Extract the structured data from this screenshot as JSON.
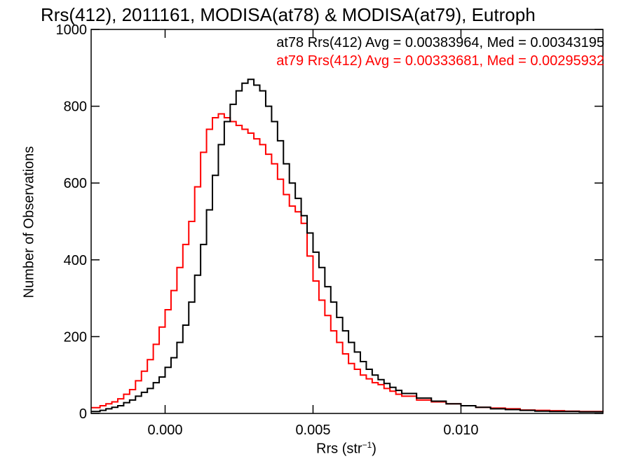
{
  "chart_data": {
    "type": "line",
    "title": "Rrs(412), 2011161, MODISA(at78) & MODISA(at79), Eutroph",
    "xlabel_base": "Rrs (str",
    "xlabel_sup": "−1",
    "xlabel_close": ")",
    "ylabel": "Number of Observations",
    "xlim": [
      -0.0025,
      0.0148
    ],
    "ylim": [
      0,
      1000
    ],
    "x_ticks": [
      {
        "value": 0.0,
        "label": "0.000"
      },
      {
        "value": 0.005,
        "label": "0.005"
      },
      {
        "value": 0.01,
        "label": "0.010"
      }
    ],
    "y_ticks": [
      {
        "value": 0,
        "label": "0"
      },
      {
        "value": 200,
        "label": "200"
      },
      {
        "value": 400,
        "label": "400"
      },
      {
        "value": 600,
        "label": "600"
      },
      {
        "value": 800,
        "label": "800"
      },
      {
        "value": 1000,
        "label": "1000"
      }
    ],
    "x": [
      -0.0025,
      -0.0022,
      -0.002,
      -0.0018,
      -0.0016,
      -0.0014,
      -0.0012,
      -0.001,
      -0.0008,
      -0.0006,
      -0.0004,
      -0.0002,
      0.0,
      0.0002,
      0.0004,
      0.0006,
      0.0008,
      0.001,
      0.0012,
      0.0014,
      0.0016,
      0.0018,
      0.002,
      0.0022,
      0.0024,
      0.0026,
      0.0028,
      0.003,
      0.0032,
      0.0034,
      0.0036,
      0.0038,
      0.004,
      0.0042,
      0.0044,
      0.0046,
      0.0048,
      0.005,
      0.0052,
      0.0054,
      0.0056,
      0.0058,
      0.006,
      0.0062,
      0.0064,
      0.0066,
      0.0068,
      0.007,
      0.0072,
      0.0074,
      0.0076,
      0.0078,
      0.008,
      0.0085,
      0.009,
      0.0095,
      0.01,
      0.0105,
      0.011,
      0.0115,
      0.012,
      0.0125,
      0.013,
      0.0135,
      0.014,
      0.0145,
      0.0148
    ],
    "series": [
      {
        "name": "at78",
        "color": "#000000",
        "values": [
          5,
          8,
          12,
          16,
          20,
          28,
          35,
          45,
          55,
          65,
          80,
          95,
          120,
          145,
          185,
          230,
          290,
          360,
          440,
          530,
          620,
          700,
          760,
          805,
          840,
          860,
          870,
          855,
          840,
          800,
          760,
          710,
          650,
          600,
          560,
          515,
          470,
          420,
          380,
          330,
          290,
          250,
          215,
          185,
          160,
          135,
          115,
          100,
          88,
          78,
          68,
          60,
          52,
          40,
          32,
          25,
          20,
          16,
          12,
          10,
          8,
          6,
          5,
          5,
          4,
          4,
          4
        ]
      },
      {
        "name": "at79",
        "color": "#ff0000",
        "values": [
          15,
          20,
          25,
          30,
          38,
          50,
          62,
          85,
          110,
          140,
          180,
          225,
          270,
          320,
          380,
          440,
          500,
          590,
          680,
          740,
          770,
          780,
          770,
          760,
          750,
          740,
          730,
          715,
          700,
          675,
          650,
          610,
          570,
          540,
          525,
          495,
          410,
          345,
          295,
          255,
          215,
          185,
          155,
          130,
          115,
          100,
          90,
          80,
          75,
          65,
          58,
          50,
          45,
          35,
          30,
          25,
          20,
          16,
          14,
          12,
          9,
          8,
          7,
          6,
          5,
          5,
          4
        ]
      }
    ],
    "legend": [
      {
        "text": "at78 Rrs(412) Avg = 0.00383964, Med = 0.00343195",
        "color": "#000000"
      },
      {
        "text": "at79 Rrs(412) Avg = 0.00333681, Med = 0.00295932",
        "color": "#ff0000"
      }
    ],
    "legend_position": "top-right",
    "grid": false
  }
}
